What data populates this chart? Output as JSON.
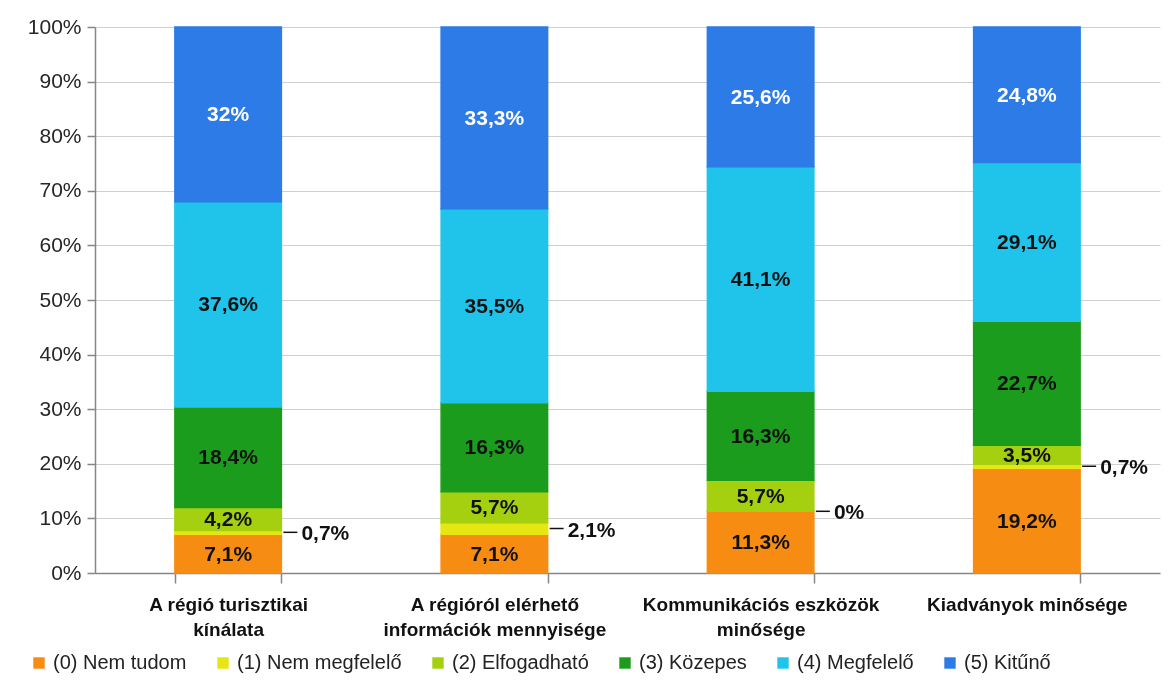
{
  "chart_data": {
    "type": "bar",
    "stacked": true,
    "categories": [
      "A régió turisztikai kínálata",
      "A régióról elérhető információk mennyisége",
      "Kommunikációs eszközök minősége",
      "Kiadványok minősége"
    ],
    "series": [
      {
        "name": "(0) Nem tudom",
        "color": "#f78c12",
        "values": [
          7.1,
          7.1,
          11.3,
          19.2
        ],
        "value_labels": [
          "7,1%",
          "7,1%",
          "11,3%",
          "19,2%"
        ]
      },
      {
        "name": "(1) Nem megfelelő",
        "color": "#e6e612",
        "values": [
          0.7,
          2.1,
          0,
          0.7
        ],
        "value_labels": [
          "0,7%",
          "2,1%",
          "0%",
          "0,7%"
        ]
      },
      {
        "name": "(2) Elfogadható",
        "color": "#a4d010",
        "values": [
          4.2,
          5.7,
          5.7,
          3.5
        ],
        "value_labels": [
          "4,2%",
          "5,7%",
          "5,7%",
          "3,5%"
        ]
      },
      {
        "name": "(3) Közepes",
        "color": "#1c9c1c",
        "values": [
          18.4,
          16.3,
          16.3,
          22.7
        ],
        "value_labels": [
          "18,4%",
          "16,3%",
          "16,3%",
          "22,7%"
        ]
      },
      {
        "name": "(4) Megfelelő",
        "color": "#20c4ea",
        "values": [
          37.6,
          35.5,
          41.1,
          29.1
        ],
        "value_labels": [
          "37,6%",
          "35,5%",
          "41,1%",
          "29,1%"
        ]
      },
      {
        "name": "(5) Kitűnő",
        "color": "#2c7be6",
        "values": [
          32,
          33.3,
          25.6,
          24.8
        ],
        "value_labels": [
          "32%",
          "33,3%",
          "25,6%",
          "24,8%"
        ]
      }
    ],
    "ylim": [
      0,
      100
    ],
    "yticks": [
      {
        "value": 0,
        "label": "0%"
      },
      {
        "value": 10,
        "label": "10%"
      },
      {
        "value": 20,
        "label": "20%"
      },
      {
        "value": 30,
        "label": "30%"
      },
      {
        "value": 40,
        "label": "40%"
      },
      {
        "value": 50,
        "label": "50%"
      },
      {
        "value": 60,
        "label": "60%"
      },
      {
        "value": 70,
        "label": "70%"
      },
      {
        "value": 80,
        "label": "80%"
      },
      {
        "value": 90,
        "label": "90%"
      },
      {
        "value": 100,
        "label": "100%"
      }
    ],
    "grid": "y",
    "legend": "bottom"
  }
}
